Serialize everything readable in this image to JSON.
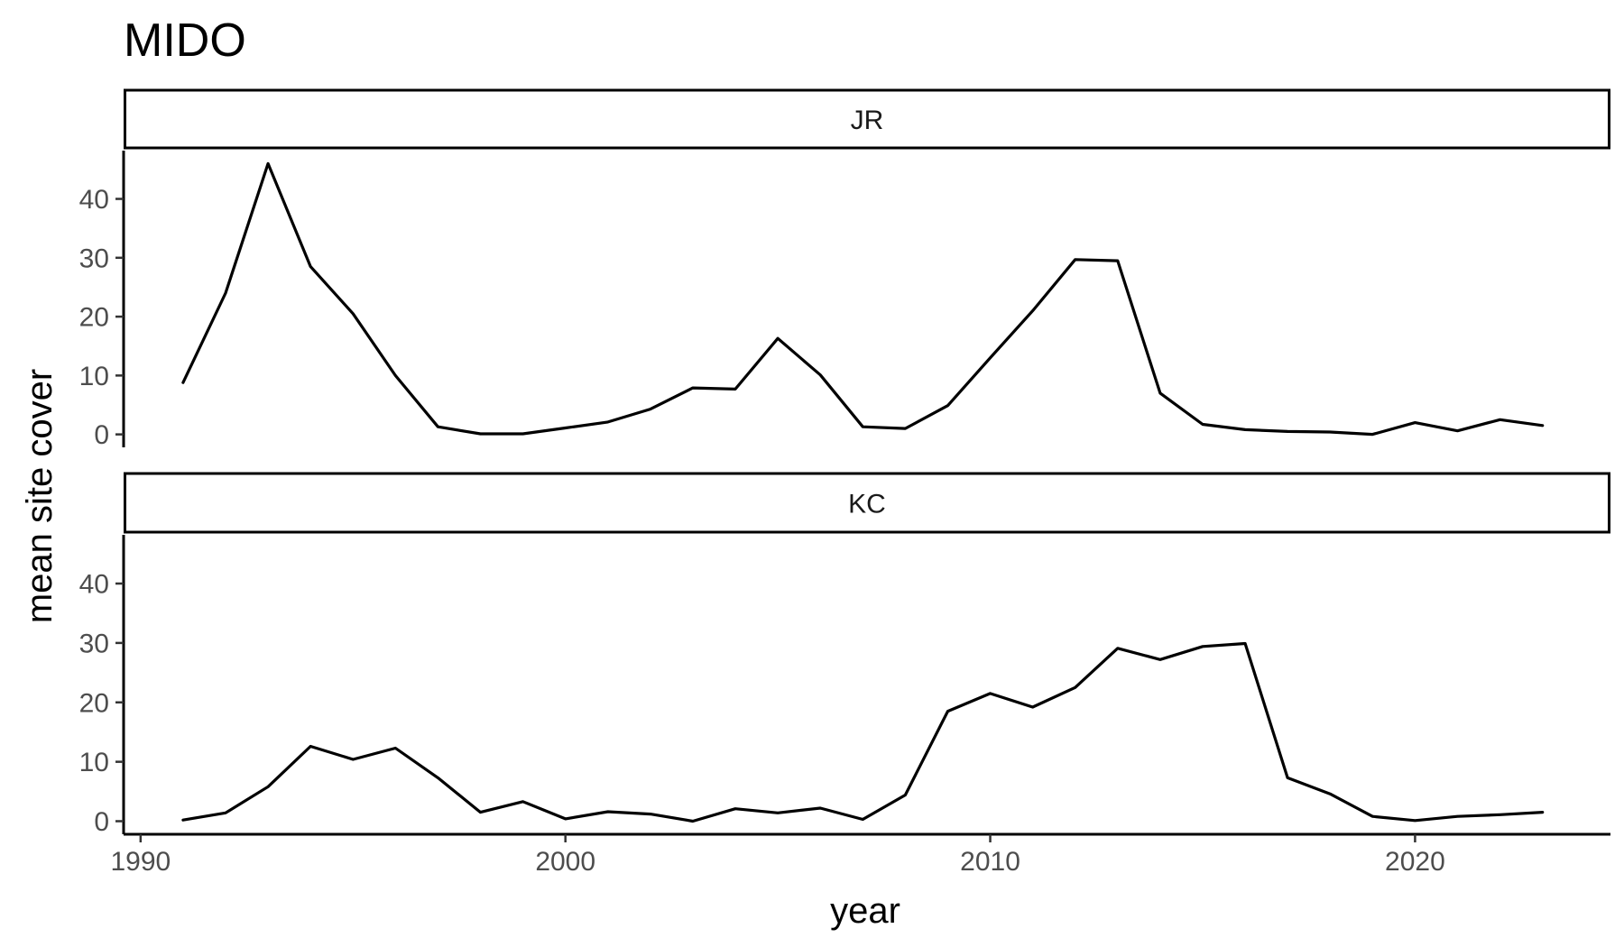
{
  "chart_data": {
    "type": "line",
    "title": "MIDO",
    "xlabel": "year",
    "ylabel": "mean site cover",
    "xlim": [
      1989.6,
      2024.6
    ],
    "ylim": [
      -2.2,
      48.2
    ],
    "x_ticks": [
      1990,
      2000,
      2010,
      2020
    ],
    "y_ticks": [
      0,
      10,
      20,
      30,
      40
    ],
    "grid": false,
    "panels": [
      {
        "label": "JR",
        "x": [
          1991,
          1992,
          1993,
          1994,
          1995,
          1996,
          1997,
          1998,
          1999,
          2000,
          2001,
          2002,
          2003,
          2004,
          2005,
          2006,
          2007,
          2008,
          2009,
          2010,
          2011,
          2012,
          2013,
          2014,
          2015,
          2016,
          2017,
          2018,
          2019,
          2020,
          2021,
          2022,
          2023
        ],
        "values": [
          8.8,
          24.0,
          46.0,
          28.5,
          20.5,
          10.0,
          1.3,
          0.1,
          0.1,
          1.1,
          2.1,
          4.3,
          7.9,
          7.7,
          16.3,
          10.1,
          1.3,
          1.0,
          4.9,
          13.0,
          21.0,
          29.7,
          29.5,
          7.0,
          1.7,
          0.8,
          0.5,
          0.4,
          0.0,
          2.0,
          0.6,
          2.5,
          1.5
        ]
      },
      {
        "label": "KC",
        "x": [
          1991,
          1992,
          1993,
          1994,
          1995,
          1996,
          1997,
          1998,
          1999,
          2000,
          2001,
          2002,
          2003,
          2004,
          2005,
          2006,
          2007,
          2008,
          2009,
          2010,
          2011,
          2012,
          2013,
          2014,
          2015,
          2016,
          2017,
          2018,
          2019,
          2020,
          2021,
          2022,
          2023
        ],
        "values": [
          0.2,
          1.4,
          5.8,
          12.6,
          10.4,
          12.3,
          7.3,
          1.5,
          3.3,
          0.4,
          1.6,
          1.2,
          0.0,
          2.1,
          1.4,
          2.2,
          0.3,
          4.4,
          18.5,
          21.5,
          19.2,
          22.5,
          29.1,
          27.2,
          29.4,
          29.9,
          7.3,
          4.6,
          0.8,
          0.1,
          0.8,
          1.1,
          1.5
        ]
      }
    ]
  }
}
